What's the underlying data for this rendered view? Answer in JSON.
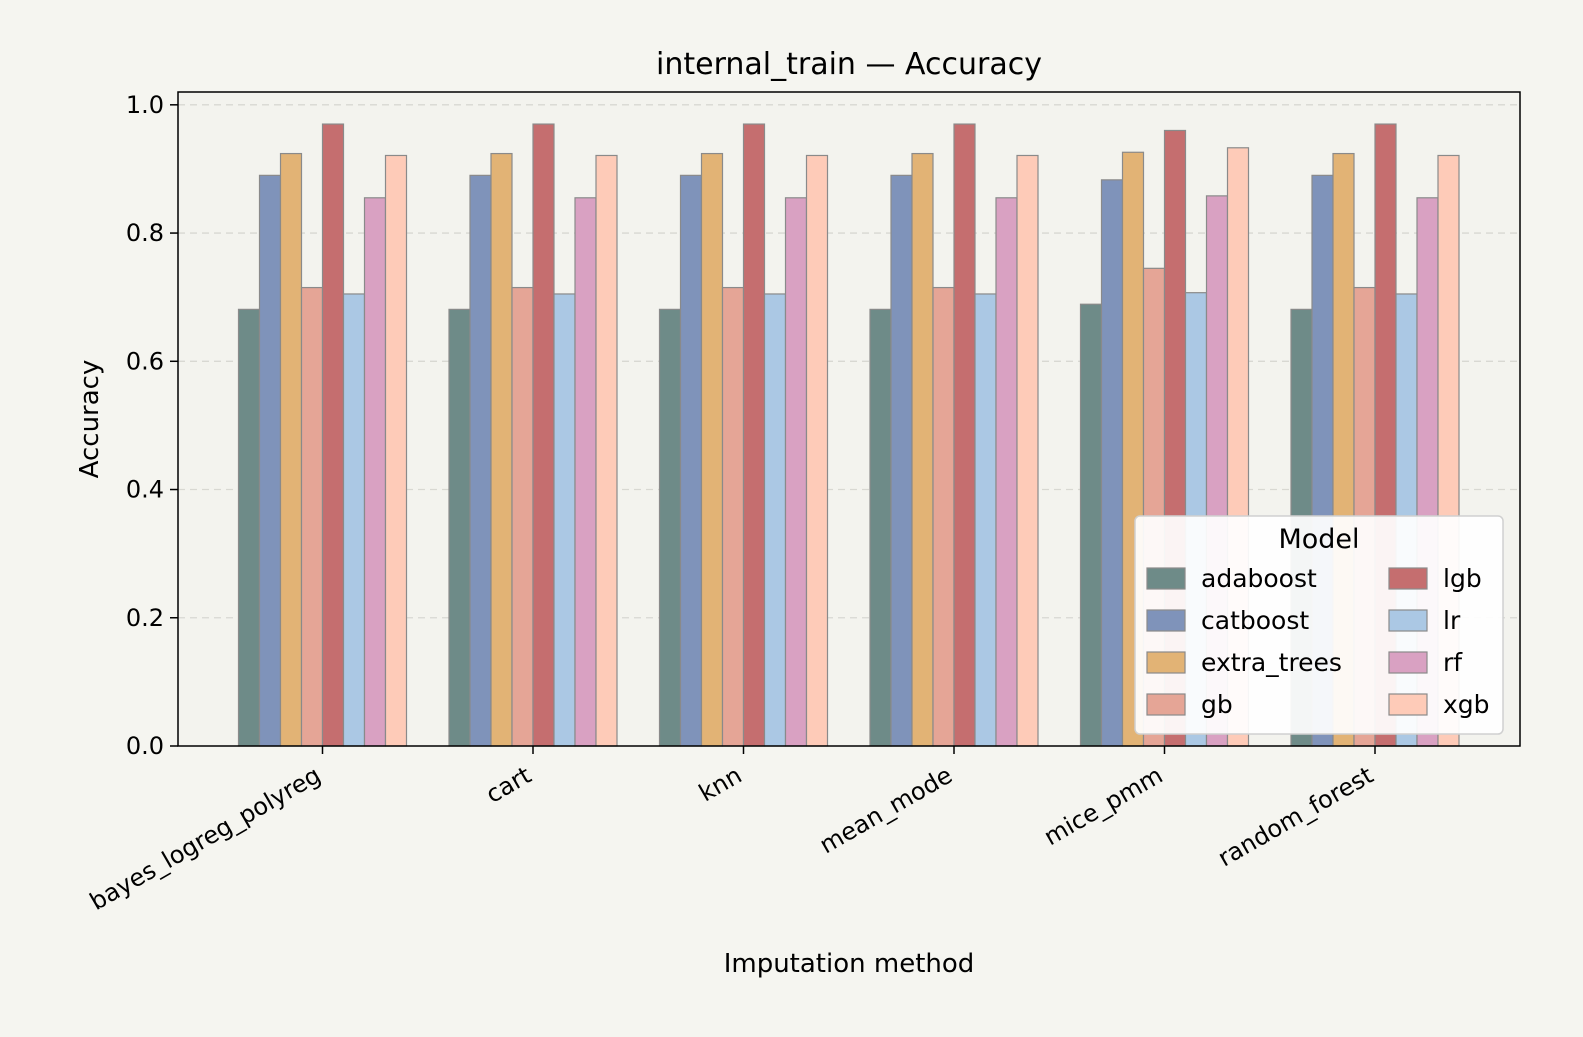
{
  "chart_data": {
    "type": "bar",
    "title": "internal_train — Accuracy",
    "xlabel": "Imputation method",
    "ylabel": "Accuracy",
    "ylim": [
      0,
      1.02
    ],
    "yticks": [
      "0.0",
      "0.2",
      "0.4",
      "0.6",
      "0.8",
      "1.0"
    ],
    "grid": "y-dashed",
    "legend": {
      "title": "Model",
      "placement": "lower-right",
      "columns": 2
    },
    "categories": [
      "bayes_logreg_polyreg",
      "cart",
      "knn",
      "mean_mode",
      "mice_pmm",
      "random_forest"
    ],
    "series": [
      {
        "name": "adaboost",
        "color": "#6e8b88",
        "values": [
          0.681,
          0.681,
          0.681,
          0.681,
          0.689,
          0.681
        ]
      },
      {
        "name": "catboost",
        "color": "#7f93ba",
        "values": [
          0.89,
          0.89,
          0.89,
          0.89,
          0.883,
          0.89
        ]
      },
      {
        "name": "extra_trees",
        "color": "#e2b375",
        "values": [
          0.924,
          0.924,
          0.924,
          0.924,
          0.926,
          0.924
        ]
      },
      {
        "name": "gb",
        "color": "#e5a596",
        "values": [
          0.715,
          0.715,
          0.715,
          0.715,
          0.745,
          0.715
        ]
      },
      {
        "name": "lgb",
        "color": "#c56e6f",
        "values": [
          0.97,
          0.97,
          0.97,
          0.97,
          0.96,
          0.97
        ]
      },
      {
        "name": "lr",
        "color": "#abc8e4",
        "values": [
          0.705,
          0.705,
          0.705,
          0.705,
          0.707,
          0.705
        ]
      },
      {
        "name": "rf",
        "color": "#d9a1c2",
        "values": [
          0.855,
          0.855,
          0.855,
          0.855,
          0.858,
          0.855
        ]
      },
      {
        "name": "xgb",
        "color": "#fecbb8",
        "values": [
          0.921,
          0.921,
          0.921,
          0.921,
          0.933,
          0.921
        ]
      }
    ]
  }
}
